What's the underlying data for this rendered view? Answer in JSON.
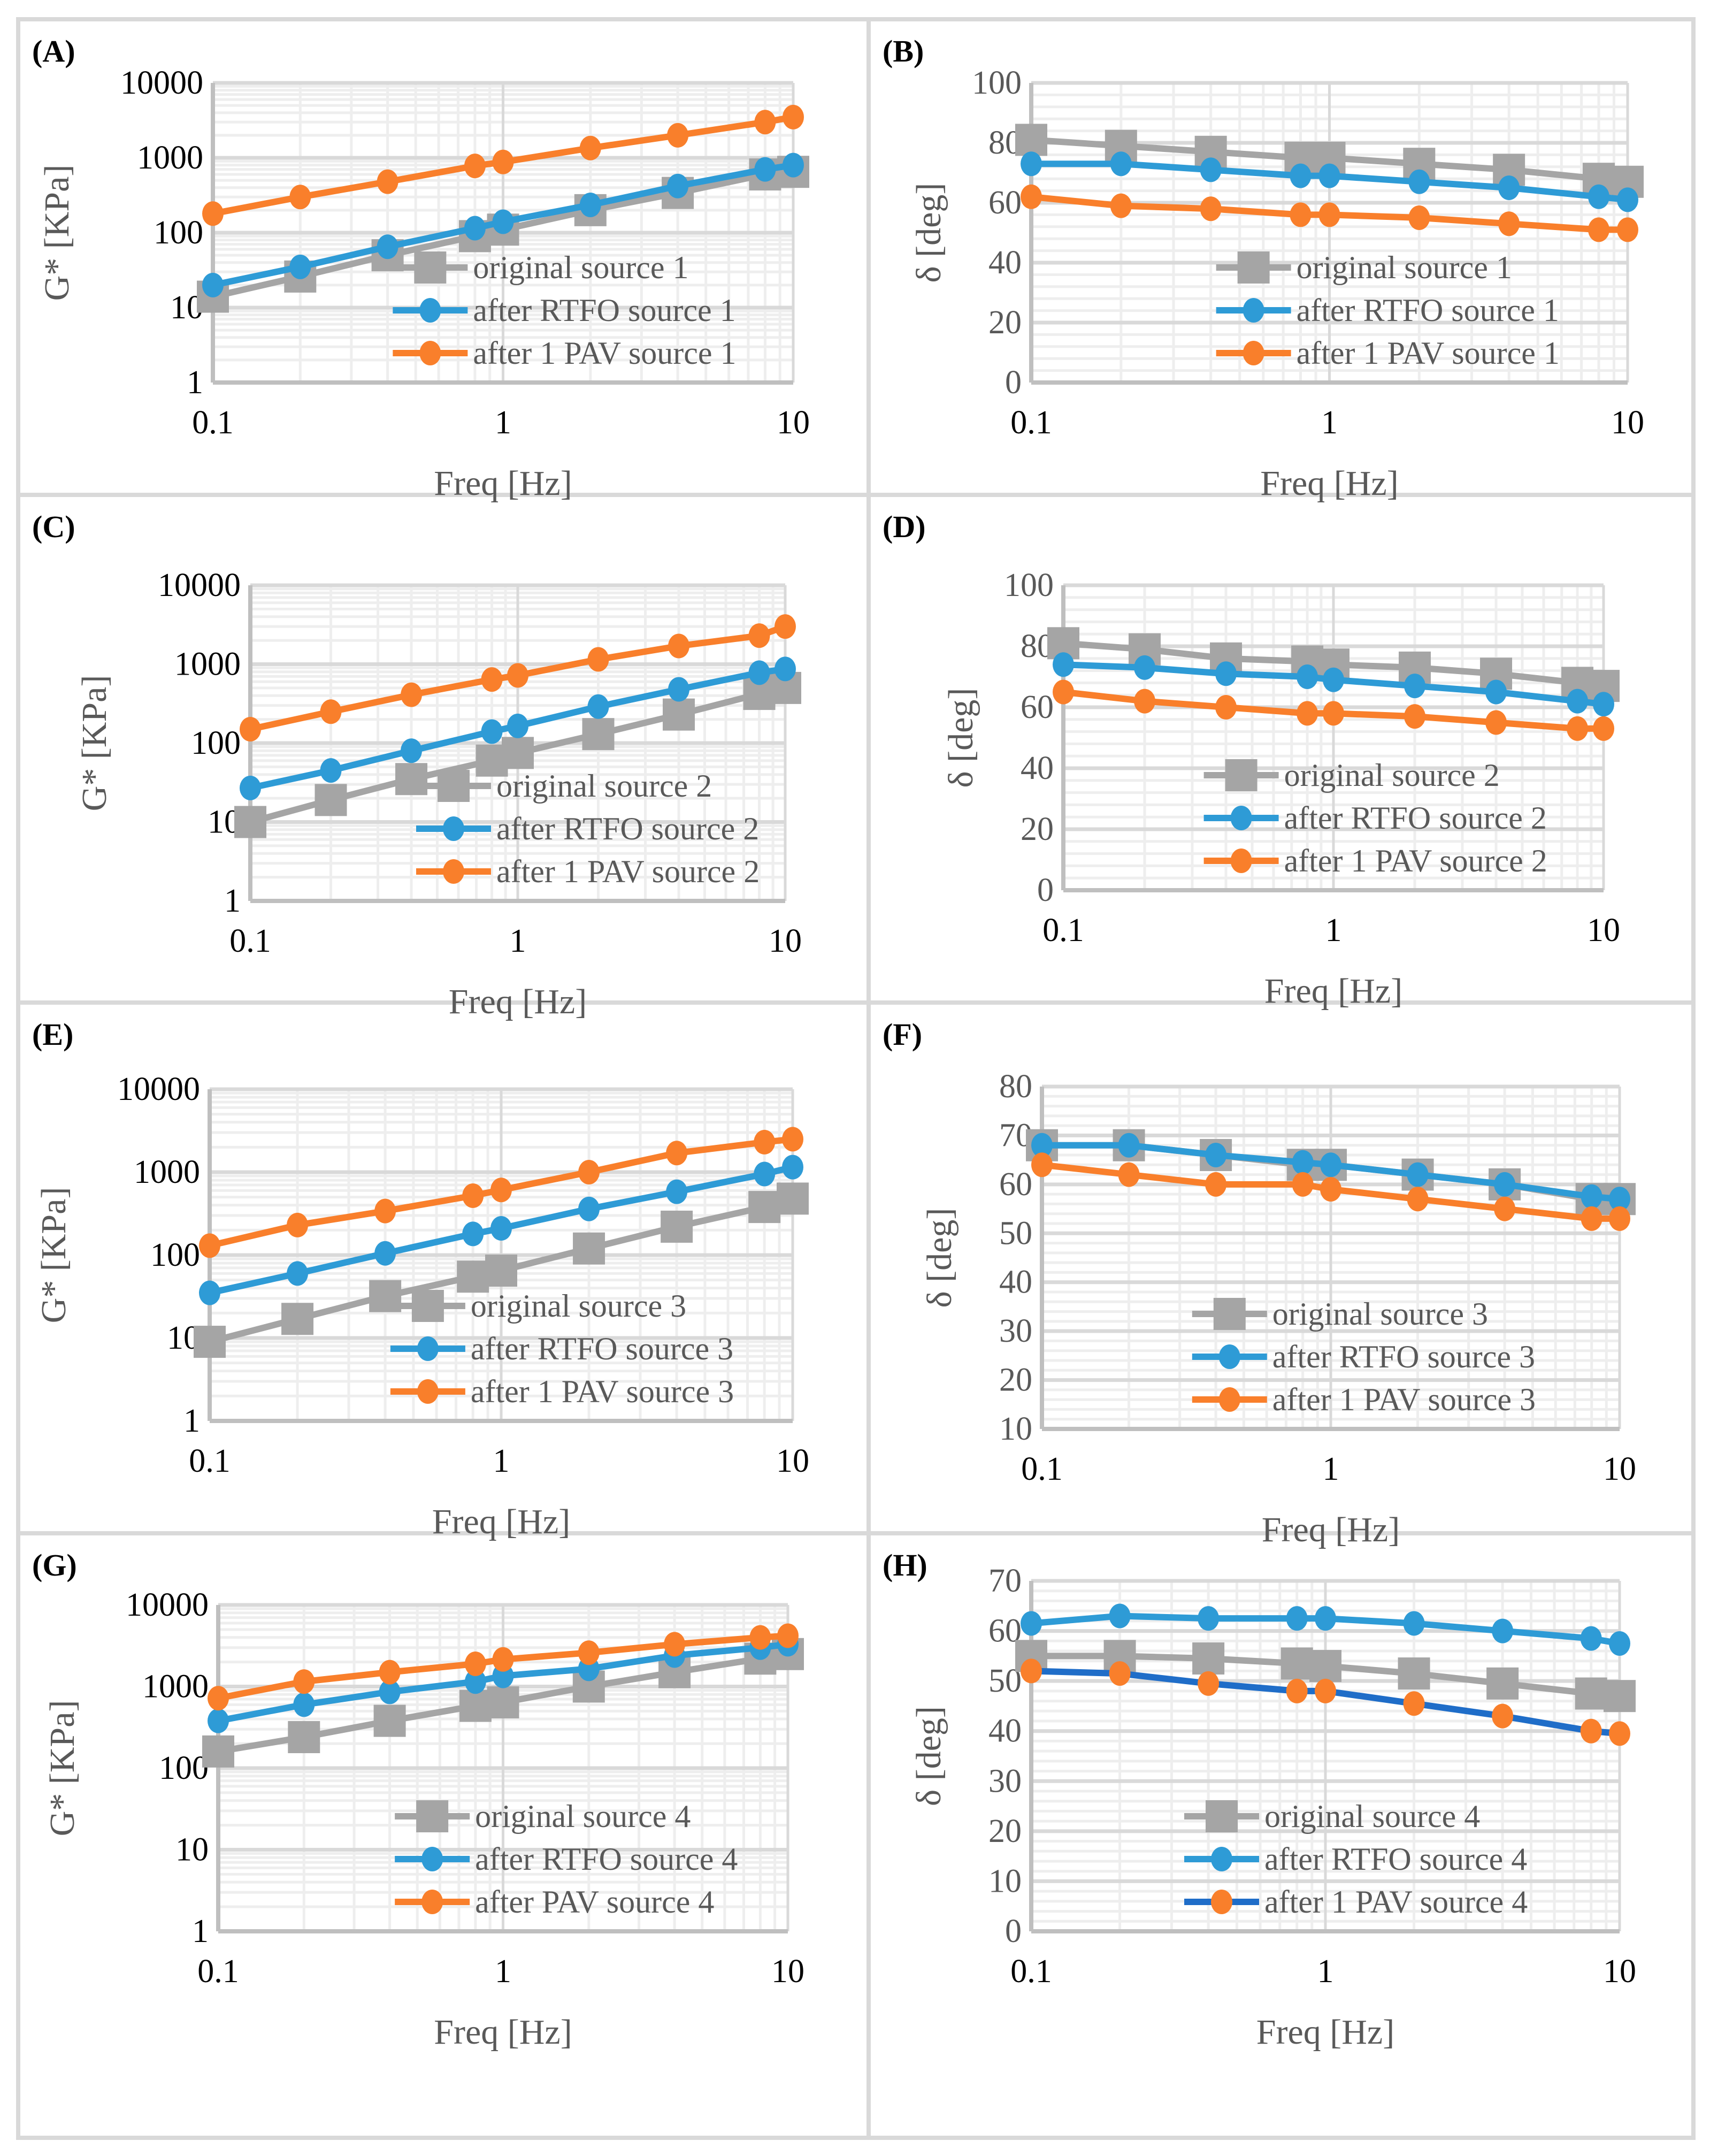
{
  "figure": {
    "colors": {
      "original": "#a5a5a5",
      "rtfo": "#2e9bd6",
      "pav": "#f97f2b",
      "pav_line_h": "#1f6dc8",
      "grid_major": "#d9d9d9",
      "grid_minor": "#eeeeee",
      "tick_text_dark": "#000000",
      "tick_text_grey": "#595959"
    }
  },
  "chart_data": [
    {
      "id": "A",
      "panel_label": "(A)",
      "type": "line",
      "xscale": "log",
      "yscale": "log",
      "xlabel": "Freq [Hz]",
      "ylabel": "G* [KPa]",
      "xlim": [
        0.1,
        10
      ],
      "ylim": [
        1,
        10000
      ],
      "xticks": [
        0.1,
        1,
        10
      ],
      "xtick_labels": [
        "0.1",
        "1",
        "10"
      ],
      "yticks": [
        1,
        10,
        100,
        1000,
        10000
      ],
      "ytick_labels": [
        "1",
        "10",
        "100",
        "1000",
        "10000"
      ],
      "grid": true,
      "legend_position": "bottom-right",
      "x": [
        0.1,
        0.2,
        0.4,
        0.8,
        1,
        2,
        4,
        8,
        10
      ],
      "series": [
        {
          "name": "original source 1",
          "marker": "square",
          "color_key": "original",
          "values": [
            14,
            26,
            50,
            90,
            110,
            200,
            340,
            600,
            650
          ]
        },
        {
          "name": "after RTFO source 1",
          "marker": "circle",
          "color_key": "rtfo",
          "values": [
            20,
            35,
            65,
            115,
            140,
            235,
            420,
            700,
            800
          ]
        },
        {
          "name": "after 1 PAV source 1",
          "marker": "circle",
          "color_key": "pav",
          "values": [
            180,
            300,
            480,
            780,
            880,
            1350,
            2000,
            3000,
            3500
          ]
        }
      ]
    },
    {
      "id": "B",
      "panel_label": "(B)",
      "type": "line",
      "xscale": "log",
      "yscale": "linear",
      "xlabel": "Freq [Hz]",
      "ylabel": "δ [deg]",
      "xlim": [
        0.1,
        10
      ],
      "ylim": [
        0,
        100
      ],
      "xticks": [
        0.1,
        1,
        10
      ],
      "xtick_labels": [
        "0.1",
        "1",
        "10"
      ],
      "yticks": [
        0,
        20,
        40,
        60,
        80,
        100
      ],
      "ytick_labels": [
        "0",
        "20",
        "40",
        "60",
        "80",
        "100"
      ],
      "grid": true,
      "legend_position": "bottom-right",
      "x": [
        0.1,
        0.2,
        0.4,
        0.8,
        1,
        2,
        4,
        8,
        10
      ],
      "series": [
        {
          "name": "original source 1",
          "marker": "square",
          "color_key": "original",
          "values": [
            81,
            79,
            77,
            75,
            75,
            73,
            71,
            68,
            67
          ]
        },
        {
          "name": "after RTFO source 1",
          "marker": "circle",
          "color_key": "rtfo",
          "values": [
            73,
            73,
            71,
            69,
            69,
            67,
            65,
            62,
            61
          ]
        },
        {
          "name": "after 1 PAV source 1",
          "marker": "circle",
          "color_key": "pav",
          "values": [
            62,
            59,
            58,
            56,
            56,
            55,
            53,
            51,
            51
          ]
        }
      ]
    },
    {
      "id": "C",
      "panel_label": "(C)",
      "type": "line",
      "xscale": "log",
      "yscale": "log",
      "xlabel": "Freq [Hz]",
      "ylabel": "G* [KPa]",
      "xlim": [
        0.1,
        10
      ],
      "ylim": [
        1,
        10000
      ],
      "xticks": [
        0.1,
        1,
        10
      ],
      "xtick_labels": [
        "0.1",
        "1",
        "10"
      ],
      "yticks": [
        1,
        10,
        100,
        1000,
        10000
      ],
      "ytick_labels": [
        "1",
        "10",
        "100",
        "1000",
        "10000"
      ],
      "grid": true,
      "legend_position": "bottom-right",
      "x": [
        0.1,
        0.2,
        0.4,
        0.8,
        1,
        2,
        4,
        8,
        10
      ],
      "series": [
        {
          "name": "original source 2",
          "marker": "square",
          "color_key": "original",
          "values": [
            10,
            19,
            35,
            60,
            75,
            130,
            230,
            420,
            500
          ]
        },
        {
          "name": "after RTFO source 2",
          "marker": "circle",
          "color_key": "rtfo",
          "values": [
            27,
            45,
            80,
            140,
            165,
            290,
            480,
            780,
            870
          ]
        },
        {
          "name": "after 1 PAV source 2",
          "marker": "circle",
          "color_key": "pav",
          "values": [
            150,
            250,
            410,
            640,
            720,
            1150,
            1700,
            2300,
            3000
          ]
        }
      ]
    },
    {
      "id": "D",
      "panel_label": "(D)",
      "type": "line",
      "xscale": "log",
      "yscale": "linear",
      "xlabel": "Freq [Hz]",
      "ylabel": "δ [deg]",
      "xlim": [
        0.1,
        10
      ],
      "ylim": [
        0,
        100
      ],
      "xticks": [
        0.1,
        1,
        10
      ],
      "xtick_labels": [
        "0.1",
        "1",
        "10"
      ],
      "yticks": [
        0,
        20,
        40,
        60,
        80,
        100
      ],
      "ytick_labels": [
        "0",
        "20",
        "40",
        "60",
        "80",
        "100"
      ],
      "grid": true,
      "legend_position": "bottom-center",
      "x": [
        0.1,
        0.2,
        0.4,
        0.8,
        1,
        2,
        4,
        8,
        10
      ],
      "series": [
        {
          "name": "original source 2",
          "marker": "square",
          "color_key": "original",
          "values": [
            81,
            79,
            76,
            75,
            74,
            73,
            71,
            68,
            67
          ]
        },
        {
          "name": "after RTFO source 2",
          "marker": "circle",
          "color_key": "rtfo",
          "values": [
            74,
            73,
            71,
            70,
            69,
            67,
            65,
            62,
            61
          ]
        },
        {
          "name": "after 1 PAV source 2",
          "marker": "circle",
          "color_key": "pav",
          "values": [
            65,
            62,
            60,
            58,
            58,
            57,
            55,
            53,
            53
          ]
        }
      ]
    },
    {
      "id": "E",
      "panel_label": "(E)",
      "type": "line",
      "xscale": "log",
      "yscale": "log",
      "xlabel": "Freq [Hz]",
      "ylabel": "G* [KPa]",
      "xlim": [
        0.1,
        10
      ],
      "ylim": [
        1,
        10000
      ],
      "xticks": [
        0.1,
        1,
        10
      ],
      "xtick_labels": [
        "0.1",
        "1",
        "10"
      ],
      "yticks": [
        1,
        10,
        100,
        1000,
        10000
      ],
      "ytick_labels": [
        "1",
        "10",
        "100",
        "1000",
        "10000"
      ],
      "grid": true,
      "legend_position": "bottom-right",
      "x": [
        0.1,
        0.2,
        0.4,
        0.8,
        1,
        2,
        4,
        8,
        10
      ],
      "series": [
        {
          "name": "original source 3",
          "marker": "square",
          "color_key": "original",
          "values": [
            9,
            17,
            32,
            55,
            65,
            120,
            220,
            380,
            480
          ]
        },
        {
          "name": "after RTFO source 3",
          "marker": "circle",
          "color_key": "rtfo",
          "values": [
            35,
            60,
            105,
            180,
            210,
            360,
            580,
            950,
            1150
          ]
        },
        {
          "name": "after 1 PAV source 3",
          "marker": "circle",
          "color_key": "pav",
          "values": [
            130,
            230,
            340,
            520,
            610,
            1000,
            1700,
            2300,
            2500
          ]
        }
      ]
    },
    {
      "id": "F",
      "panel_label": "(F)",
      "type": "line",
      "xscale": "log",
      "yscale": "linear",
      "xlabel": "Freq [Hz]",
      "ylabel": "δ [deg]",
      "xlim": [
        0.1,
        10
      ],
      "ylim": [
        10,
        80
      ],
      "xticks": [
        0.1,
        1,
        10
      ],
      "xtick_labels": [
        "0.1",
        "1",
        "10"
      ],
      "yticks": [
        10,
        20,
        30,
        40,
        50,
        60,
        70,
        80
      ],
      "ytick_labels": [
        "10",
        "20",
        "30",
        "40",
        "50",
        "60",
        "70",
        "80"
      ],
      "grid": true,
      "legend_position": "bottom-center",
      "x": [
        0.1,
        0.2,
        0.4,
        0.8,
        1,
        2,
        4,
        8,
        10
      ],
      "series": [
        {
          "name": "original source 3",
          "marker": "square",
          "color_key": "original",
          "values": [
            68,
            68,
            66,
            64,
            64,
            62,
            60,
            57,
            57
          ]
        },
        {
          "name": "after RTFO source 3",
          "marker": "circle",
          "color_key": "rtfo",
          "values": [
            68,
            68,
            66,
            64.5,
            64,
            62,
            60,
            57.5,
            57
          ]
        },
        {
          "name": "after 1 PAV source 3",
          "marker": "circle",
          "color_key": "pav",
          "values": [
            64,
            62,
            60,
            60,
            59,
            57,
            55,
            53,
            53
          ]
        }
      ]
    },
    {
      "id": "G",
      "panel_label": "(G)",
      "type": "line",
      "xscale": "log",
      "yscale": "log",
      "xlabel": "Freq [Hz]",
      "ylabel": "G* [KPa]",
      "xlim": [
        0.1,
        10
      ],
      "ylim": [
        1,
        10000
      ],
      "xticks": [
        0.1,
        1,
        10
      ],
      "xtick_labels": [
        "0.1",
        "1",
        "10"
      ],
      "yticks": [
        1,
        10,
        100,
        1000,
        10000
      ],
      "ytick_labels": [
        "1",
        "10",
        "100",
        "1000",
        "10000"
      ],
      "grid": true,
      "legend_position": "bottom-right",
      "x": [
        0.1,
        0.2,
        0.4,
        0.8,
        1,
        2,
        4,
        8,
        10
      ],
      "series": [
        {
          "name": "original source 4",
          "marker": "square",
          "color_key": "original",
          "values": [
            160,
            240,
            380,
            580,
            640,
            1000,
            1500,
            2200,
            2500
          ]
        },
        {
          "name": "after RTFO source 4",
          "marker": "circle",
          "color_key": "rtfo",
          "values": [
            380,
            600,
            860,
            1150,
            1350,
            1650,
            2400,
            3000,
            3300
          ]
        },
        {
          "name": "after PAV source 4",
          "marker": "circle",
          "color_key": "pav",
          "values": [
            720,
            1150,
            1500,
            1900,
            2150,
            2600,
            3300,
            4000,
            4200
          ]
        }
      ]
    },
    {
      "id": "H",
      "panel_label": "(H)",
      "type": "line",
      "xscale": "log",
      "yscale": "linear",
      "xlabel": "Freq [Hz]",
      "ylabel": "δ [deg]",
      "xlim": [
        0.1,
        10
      ],
      "ylim": [
        0,
        70
      ],
      "xticks": [
        0.1,
        1,
        10
      ],
      "xtick_labels": [
        "0.1",
        "1",
        "10"
      ],
      "yticks": [
        0,
        10,
        20,
        30,
        40,
        50,
        60,
        70
      ],
      "ytick_labels": [
        "0",
        "10",
        "20",
        "30",
        "40",
        "50",
        "60",
        "70"
      ],
      "grid": true,
      "legend_position": "bottom-center",
      "x": [
        0.1,
        0.2,
        0.4,
        0.8,
        1,
        2,
        4,
        8,
        10
      ],
      "series": [
        {
          "name": "original source 4",
          "marker": "square",
          "color_key": "original",
          "values": [
            55,
            55,
            54.5,
            53.5,
            53,
            51.5,
            49.5,
            47.5,
            47
          ]
        },
        {
          "name": "after RTFO source 4",
          "marker": "circle",
          "color_key": "rtfo",
          "values": [
            61.5,
            63,
            62.5,
            62.5,
            62.5,
            61.5,
            60,
            58.5,
            57.5
          ]
        },
        {
          "name": "after 1 PAV source 4",
          "marker": "circle",
          "color_key": "pav",
          "line_color_key": "pav_line_h",
          "values": [
            52,
            51.5,
            49.5,
            48,
            48,
            45.5,
            43,
            40,
            39.5
          ]
        }
      ]
    }
  ]
}
